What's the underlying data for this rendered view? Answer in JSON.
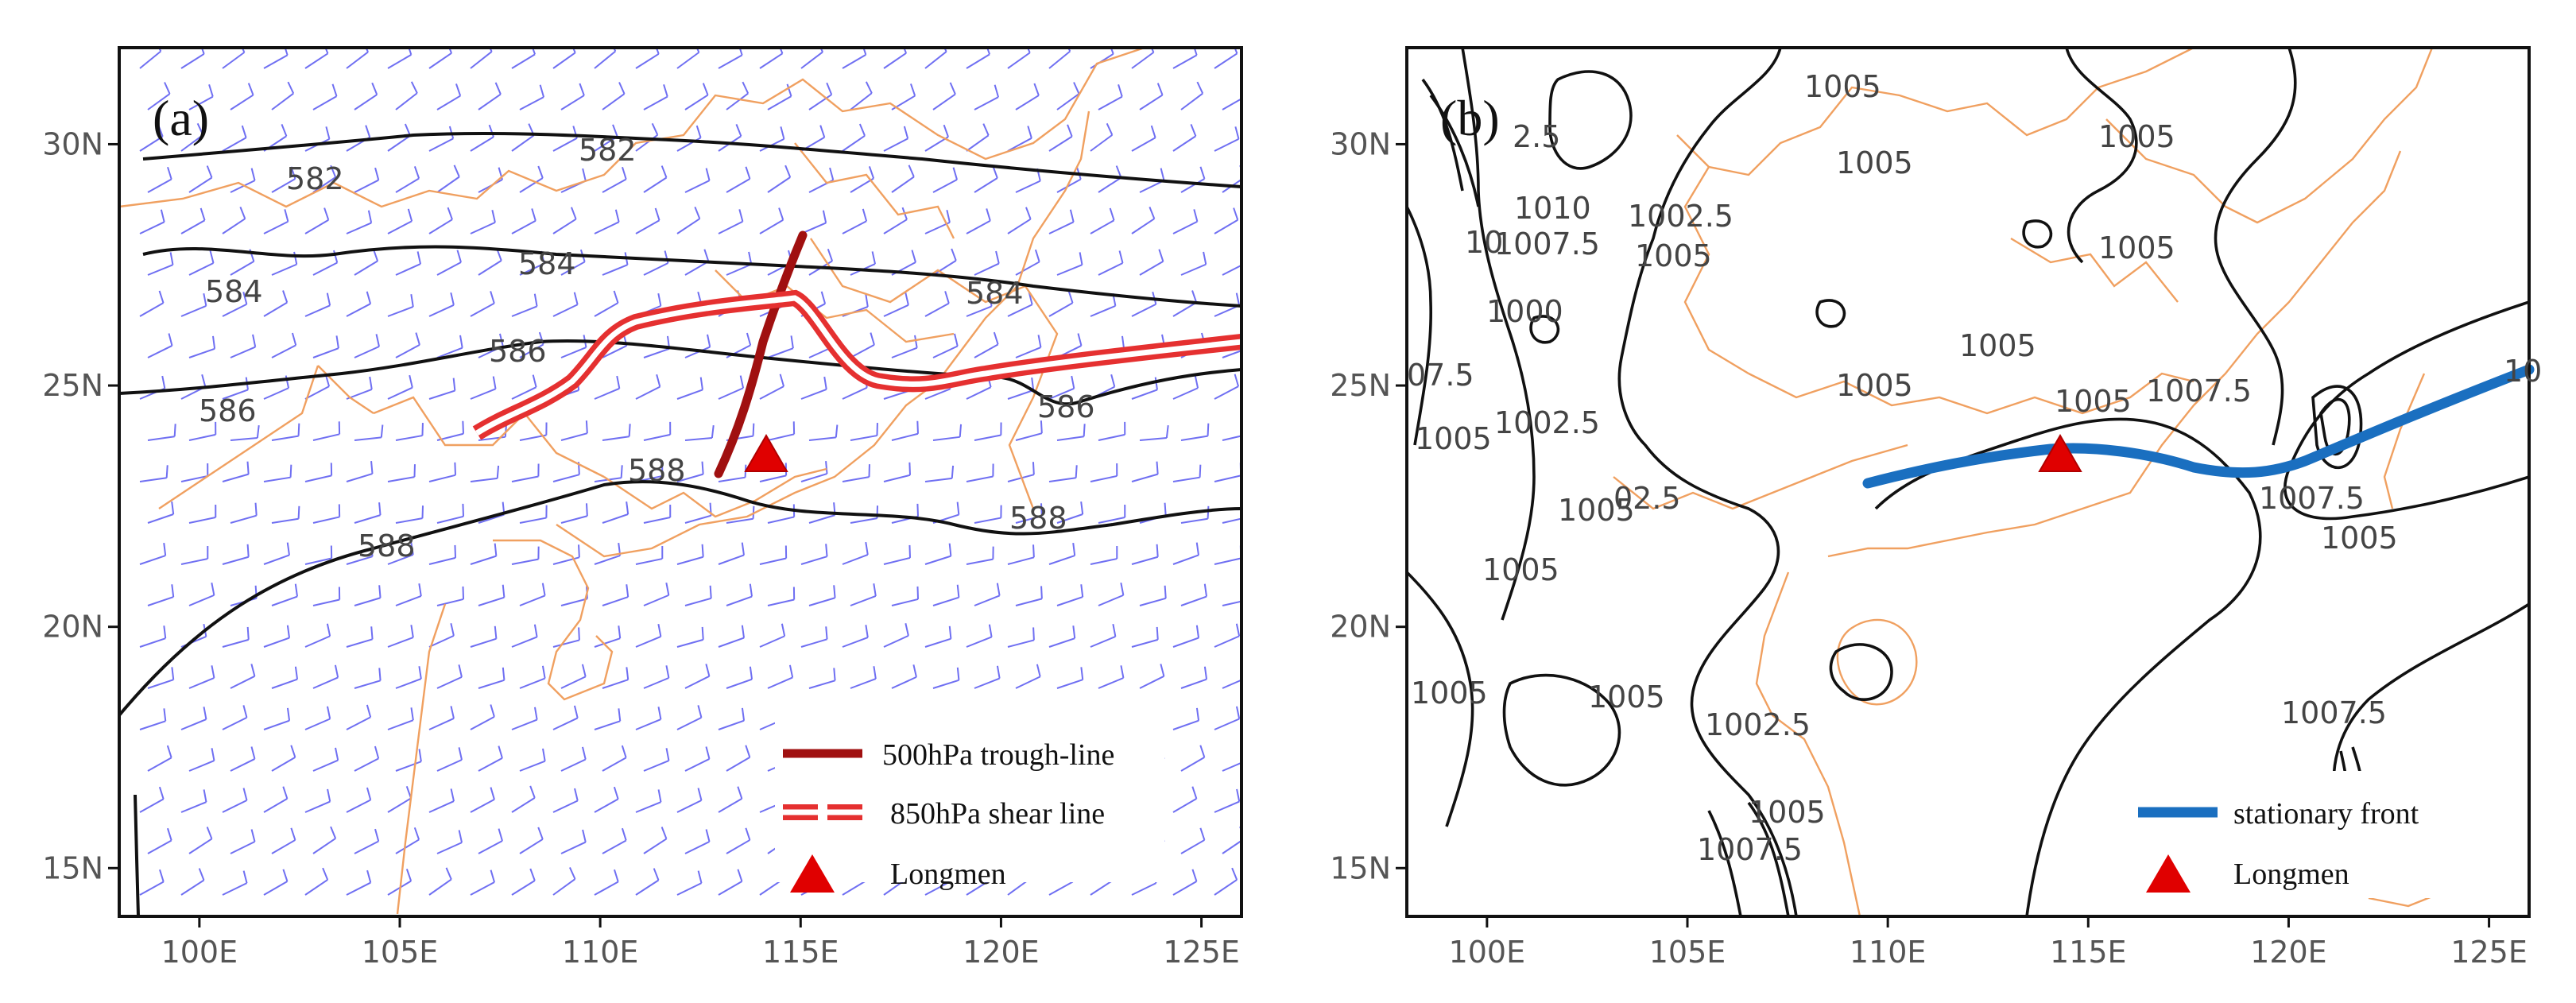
{
  "colors": {
    "wind_barbs": "#6f6ff2",
    "coastline": "#f0a060",
    "contour": "#111111",
    "trough_line": "#a01010",
    "shear_line": "#e53030",
    "stationary_front": "#1a6fc0",
    "station_marker": "#e00000"
  },
  "map_extent": {
    "lon_range": [
      98,
      126
    ],
    "lat_range": [
      14,
      32
    ]
  },
  "axis": {
    "lat_ticks": [
      {
        "lat": 30,
        "label": "30N"
      },
      {
        "lat": 25,
        "label": "25N"
      },
      {
        "lat": 20,
        "label": "20N"
      },
      {
        "lat": 15,
        "label": "15N"
      }
    ],
    "lon_ticks": [
      {
        "lon": 100,
        "label": "100E"
      },
      {
        "lon": 105,
        "label": "105E"
      },
      {
        "lon": 110,
        "label": "110E"
      },
      {
        "lon": 115,
        "label": "115E"
      },
      {
        "lon": 120,
        "label": "120E"
      },
      {
        "lon": 125,
        "label": "125E"
      }
    ]
  },
  "panels": [
    {
      "id": "a",
      "label": "(a)",
      "contour_labels": [
        "582",
        "582",
        "584",
        "584",
        "584",
        "586",
        "586",
        "586",
        "588",
        "588",
        "588"
      ],
      "features": {
        "trough_line": [
          [
            113,
            23.2
          ],
          [
            113.8,
            25
          ],
          [
            114.5,
            26.6
          ],
          [
            115,
            28
          ]
        ],
        "shear_line": [
          [
            107,
            24
          ],
          [
            108.5,
            24.8
          ],
          [
            109.5,
            25.8
          ],
          [
            111,
            26.5
          ],
          [
            114.5,
            26.8
          ],
          [
            116,
            25.2
          ],
          [
            118.5,
            24.8
          ],
          [
            122,
            25.3
          ],
          [
            126,
            25.8
          ]
        ]
      },
      "station": {
        "name": "Longmen",
        "lon": 114.2,
        "lat": 23.8
      },
      "legend": [
        {
          "type": "trough-line",
          "label": "500hPa trough-line"
        },
        {
          "type": "shear-line",
          "label": "850hPa shear line"
        },
        {
          "type": "marker",
          "label": "Longmen"
        }
      ]
    },
    {
      "id": "b",
      "label": "(b)",
      "contour_labels": [
        "1005",
        "1005",
        "1005",
        "1005",
        "1005",
        "1005",
        "1005",
        "1005",
        "1005",
        "1005",
        "1005",
        "1005",
        "2.5",
        "1010",
        "1007.5",
        "1007.5",
        "1007.5",
        "1007.5",
        "1007.5",
        "1002.5",
        "1002.5",
        "1002.5",
        "1000",
        "07.5",
        "10",
        "02.5",
        "10"
      ],
      "features": {
        "stationary_front": [
          [
            109.6,
            22.9
          ],
          [
            112,
            23.5
          ],
          [
            114.5,
            23.8
          ],
          [
            116.5,
            23.7
          ],
          [
            118.5,
            23.3
          ],
          [
            121,
            24
          ],
          [
            124,
            24.8
          ],
          [
            126,
            25.4
          ]
        ]
      },
      "station": {
        "name": "Longmen",
        "lon": 114.4,
        "lat": 23.8
      },
      "legend": [
        {
          "type": "front",
          "label": "stationary front"
        },
        {
          "type": "marker",
          "label": "Longmen"
        }
      ]
    }
  ]
}
